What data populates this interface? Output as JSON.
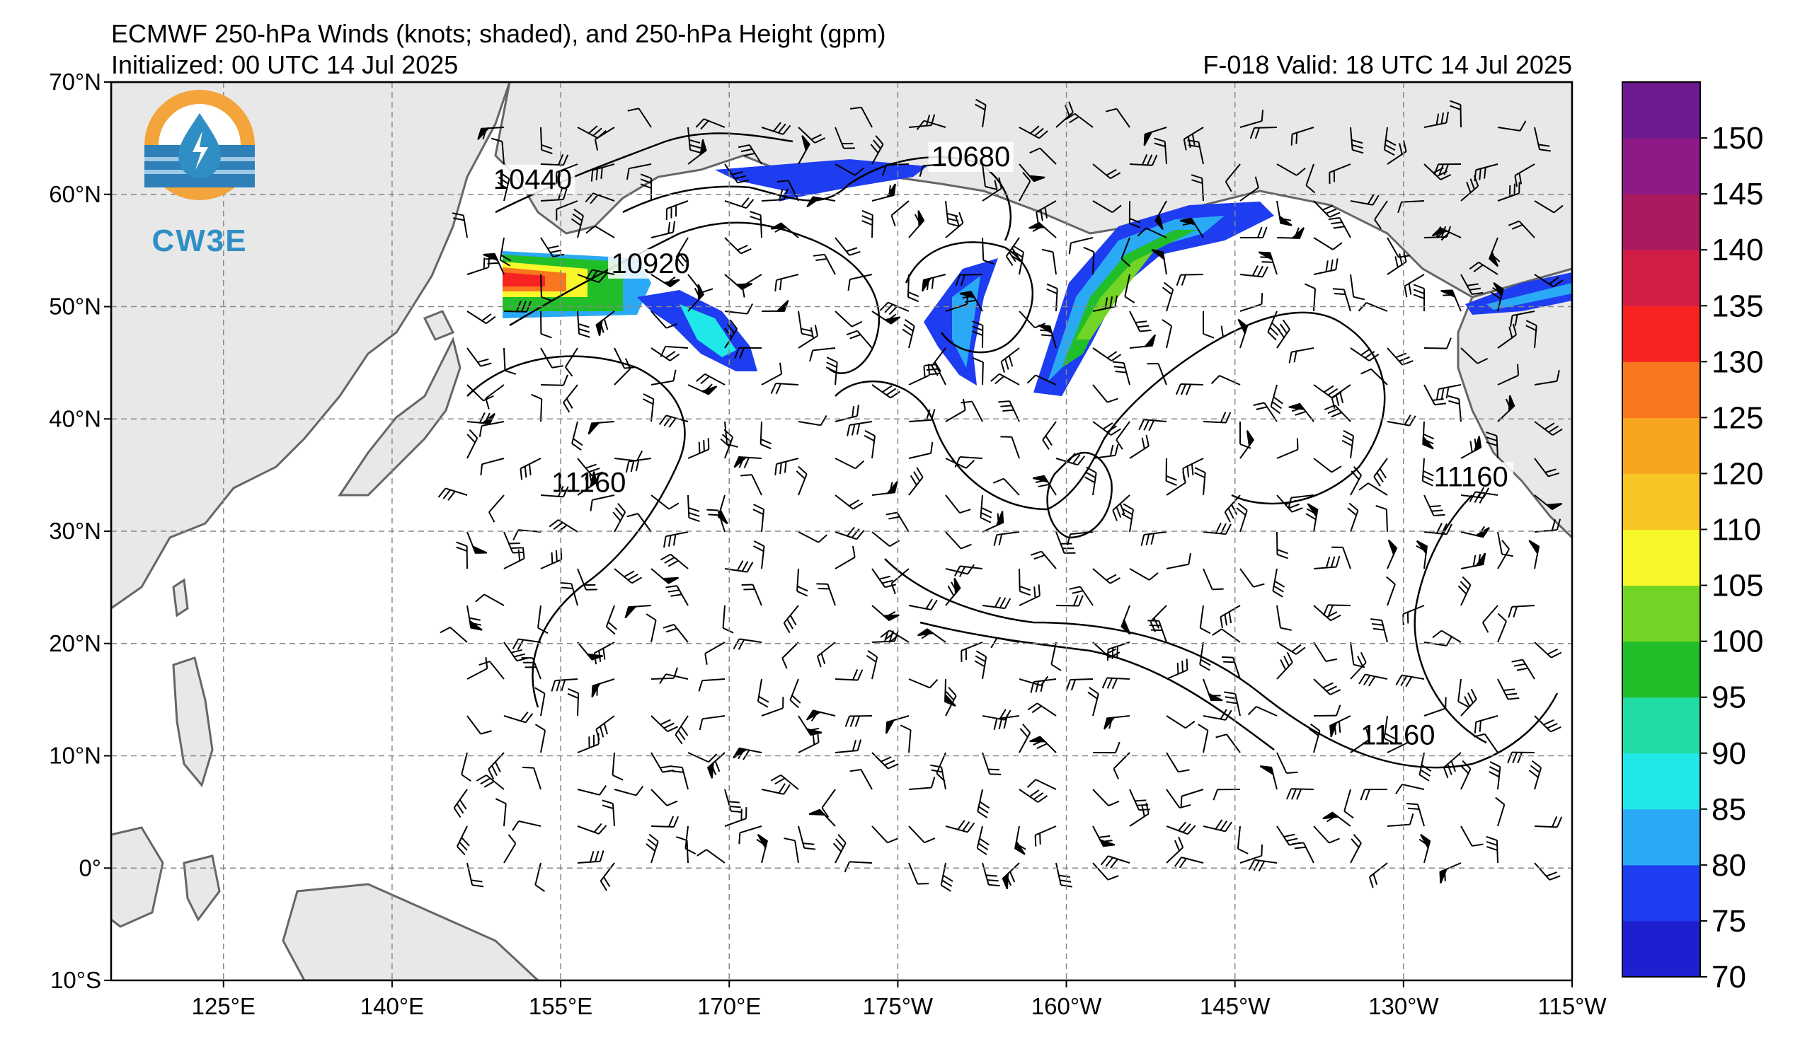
{
  "title": {
    "line1": "ECMWF 250-hPa Winds (knots; shaded), and 250-hPa Height (gpm)",
    "init": "Initialized: 00 UTC 14 Jul 2025",
    "valid": "F-018  Valid: 18 UTC 14 Jul 2025"
  },
  "logo": {
    "text": "CW3E",
    "icon": "water-drop-lightning-icon"
  },
  "map": {
    "lon_ticks": [
      "125°E",
      "140°E",
      "155°E",
      "170°E",
      "175°W",
      "160°W",
      "145°W",
      "130°W",
      "115°W"
    ],
    "lat_ticks": [
      "70°N",
      "60°N",
      "50°N",
      "40°N",
      "30°N",
      "20°N",
      "10°N",
      "0°",
      "10°S"
    ],
    "extent": {
      "lon": [
        115,
        245
      ],
      "lat": [
        -10,
        70
      ]
    },
    "grid": "dashed",
    "land_color": "#e8e8e8",
    "contour_labels": [
      {
        "text": "10440",
        "lon": 152.5,
        "lat": 60.5
      },
      {
        "text": "10680",
        "lon": -168.5,
        "lat": 62.5
      },
      {
        "text": "10920",
        "lon": 163.0,
        "lat": 53.0
      },
      {
        "text": "11160",
        "lon": 157.5,
        "lat": 33.5
      },
      {
        "text": "11160",
        "lon": -124.0,
        "lat": 34.0
      },
      {
        "text": "11160",
        "lon": -130.5,
        "lat": 11.0
      }
    ]
  },
  "colorbar": {
    "levels": [
      70,
      75,
      80,
      85,
      90,
      95,
      100,
      105,
      110,
      120,
      125,
      130,
      135,
      140,
      145,
      150,
      155
    ],
    "tick_labels": [
      "70",
      "75",
      "80",
      "85",
      "90",
      "95",
      "100",
      "105",
      "110",
      "120",
      "125",
      "130",
      "135",
      "140",
      "145",
      "150"
    ],
    "colors": [
      "#1f1fd2",
      "#1e3cf0",
      "#2aa9f5",
      "#21e8e8",
      "#22dca5",
      "#22be2a",
      "#72d424",
      "#f7f72a",
      "#f7c623",
      "#f7a51e",
      "#f7761e",
      "#f72222",
      "#d21e46",
      "#aa1a5f",
      "#8e1a87",
      "#6c1a8e"
    ]
  }
}
